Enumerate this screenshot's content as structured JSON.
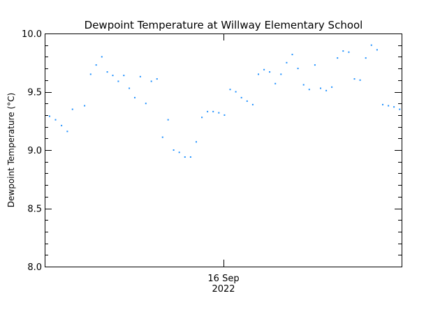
{
  "chart_data": {
    "type": "scatter",
    "title": "Dewpoint Temperature at Willway Elementary School",
    "ylabel": "Dewpoint Temperature (°C)",
    "xlabel": "",
    "x_tick_label_line1": "16 Sep",
    "x_tick_label_line2": "2022",
    "x_range_hours": [
      0,
      24
    ],
    "x_tick_at_hour": 12,
    "ylim": [
      8.0,
      10.0
    ],
    "y_ticks": [
      8.0,
      8.5,
      9.0,
      9.5,
      10.0
    ],
    "y_tick_labels": [
      "8.0",
      "8.5",
      "9.0",
      "9.5",
      "10.0"
    ],
    "y_minor_step": 0.1,
    "grid": false,
    "marker_color": "#1e90ff",
    "series": [
      {
        "x_hours": [
          0.33,
          0.73,
          1.13,
          1.52,
          1.87,
          2.68,
          3.09,
          3.46,
          3.84,
          4.21,
          4.58,
          4.95,
          5.32,
          5.69,
          6.06,
          6.43,
          6.8,
          7.17,
          7.55,
          7.93,
          8.3,
          8.67,
          9.05,
          9.43,
          9.81,
          10.19,
          10.57,
          10.95,
          11.33,
          11.71,
          12.09,
          12.47,
          12.85,
          13.23,
          13.61,
          13.99,
          14.37,
          14.75,
          15.13,
          15.51,
          15.89,
          16.27,
          16.65,
          17.03,
          17.41,
          17.79,
          18.17,
          18.55,
          18.93,
          19.31,
          19.69,
          20.07,
          20.45,
          20.83,
          21.21,
          21.59,
          21.97,
          22.35,
          22.73,
          23.11,
          23.49,
          23.87
        ],
        "y": [
          9.29,
          9.26,
          9.21,
          9.16,
          9.35,
          9.38,
          9.65,
          9.73,
          9.8,
          9.67,
          9.64,
          9.59,
          9.64,
          9.53,
          9.45,
          9.63,
          9.4,
          9.59,
          9.61,
          9.11,
          9.26,
          9.0,
          8.98,
          8.94,
          8.94,
          9.07,
          9.28,
          9.33,
          9.33,
          9.32,
          9.3,
          9.52,
          9.5,
          9.45,
          9.42,
          9.39,
          9.65,
          9.69,
          9.67,
          9.57,
          9.65,
          9.75,
          9.82,
          9.7,
          9.56,
          9.52,
          9.73,
          9.53,
          9.51,
          9.54,
          9.79,
          9.85,
          9.84,
          9.61,
          9.6,
          9.79,
          9.9,
          9.86,
          9.39,
          9.38,
          9.37,
          9.35
        ]
      }
    ]
  }
}
